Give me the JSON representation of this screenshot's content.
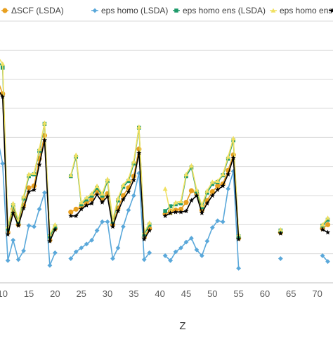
{
  "chart_data": {
    "type": "line",
    "xlabel": "Z",
    "ylabel": "",
    "xlim": [
      9.5,
      73
    ],
    "ylim": [
      0,
      27
    ],
    "x_ticks": [
      10,
      15,
      20,
      25,
      30,
      35,
      40,
      45,
      50,
      55,
      60,
      65,
      70
    ],
    "y_gridlines": [
      3,
      6,
      9,
      12,
      15,
      18,
      21,
      24,
      27
    ],
    "grid": "horizontal",
    "legend_position": "top",
    "series": [
      {
        "name": "ΔSCF (LSDA)",
        "color": "#E8A020",
        "marker": "circle",
        "points": [
          [
            9,
            21
          ],
          [
            10,
            19.5
          ],
          [
            11,
            5.2
          ],
          [
            12,
            7.6
          ],
          [
            13,
            6
          ],
          [
            14,
            8
          ],
          [
            15,
            9.8
          ],
          [
            16,
            10
          ],
          [
            17,
            12.8
          ],
          [
            18,
            15.2
          ],
          [
            19,
            4.4
          ],
          [
            20,
            5.6
          ],
          [
            23,
            7.3
          ],
          [
            24,
            7.6
          ],
          [
            25,
            7.8
          ],
          [
            26,
            8.2
          ],
          [
            27,
            8.6
          ],
          [
            28,
            9.5
          ],
          [
            29,
            8.7
          ],
          [
            30,
            9.2
          ],
          [
            31,
            6
          ],
          [
            32,
            7.7
          ],
          [
            33,
            9
          ],
          [
            34,
            9.8
          ],
          [
            35,
            11
          ],
          [
            36,
            13.8
          ],
          [
            37,
            4.7
          ],
          [
            38,
            5.6
          ],
          [
            41,
            7.1
          ],
          [
            42,
            7.4
          ],
          [
            43,
            7.5
          ],
          [
            44,
            7.6
          ],
          [
            45,
            8.3
          ],
          [
            46,
            9.5
          ],
          [
            47,
            9.2
          ],
          [
            48,
            7.5
          ],
          [
            49,
            8.5
          ],
          [
            50,
            9.4
          ],
          [
            51,
            10
          ],
          [
            52,
            10.2
          ],
          [
            53,
            11.6
          ],
          [
            54,
            13.2
          ],
          [
            55,
            4.6
          ],
          [
            63,
            5.2
          ],
          [
            71,
            5.6
          ],
          [
            72,
            6
          ]
        ]
      },
      {
        "name": "eps homo (LSDA)",
        "color": "#5AA8DA",
        "marker": "diamond",
        "points": [
          [
            9,
            15
          ],
          [
            10,
            12.3
          ],
          [
            11,
            2.3
          ],
          [
            12,
            4.4
          ],
          [
            13,
            2.4
          ],
          [
            14,
            3.3
          ],
          [
            15,
            5.9
          ],
          [
            16,
            5.8
          ],
          [
            17,
            7.6
          ],
          [
            18,
            9.3
          ],
          [
            19,
            1.8
          ],
          [
            20,
            3.1
          ],
          [
            23,
            2.5
          ],
          [
            24,
            3.2
          ],
          [
            25,
            3.6
          ],
          [
            26,
            4
          ],
          [
            27,
            4.4
          ],
          [
            28,
            5.4
          ],
          [
            29,
            6.3
          ],
          [
            30,
            6.3
          ],
          [
            31,
            2.5
          ],
          [
            32,
            3.6
          ],
          [
            33,
            5.8
          ],
          [
            34,
            7.5
          ],
          [
            35,
            9
          ],
          [
            36,
            11.3
          ],
          [
            37,
            2.4
          ],
          [
            38,
            3.1
          ],
          [
            41,
            2.8
          ],
          [
            42,
            2.3
          ],
          [
            43,
            3.2
          ],
          [
            44,
            3.6
          ],
          [
            45,
            4.2
          ],
          [
            46,
            4.6
          ],
          [
            47,
            3.4
          ],
          [
            48,
            2.8
          ],
          [
            49,
            4.3
          ],
          [
            50,
            5.7
          ],
          [
            51,
            6.4
          ],
          [
            52,
            6.3
          ],
          [
            53,
            9.7
          ],
          [
            54,
            11.5
          ],
          [
            55,
            1.5
          ],
          [
            63,
            2.5
          ],
          [
            71,
            2.8
          ],
          [
            72,
            2.2
          ]
        ]
      },
      {
        "name": "eps homo ens (LSDA)",
        "color": "#1E9A6A",
        "marker": "square",
        "points": [
          [
            9,
            23
          ],
          [
            10,
            22.2
          ],
          [
            11,
            5.6
          ],
          [
            12,
            8
          ],
          [
            13,
            6.3
          ],
          [
            14,
            8.7
          ],
          [
            15,
            11
          ],
          [
            16,
            11.2
          ],
          [
            17,
            13.6
          ],
          [
            18,
            16.4
          ],
          [
            19,
            4.8
          ],
          [
            20,
            5.8
          ],
          [
            23,
            11
          ],
          [
            24,
            13
          ],
          [
            25,
            8.1
          ],
          [
            26,
            8.6
          ],
          [
            27,
            9
          ],
          [
            28,
            9.8
          ],
          [
            29,
            9
          ],
          [
            30,
            10.5
          ],
          [
            31,
            6.3
          ],
          [
            32,
            8.5
          ],
          [
            33,
            9.9
          ],
          [
            34,
            10.5
          ],
          [
            35,
            12.3
          ],
          [
            36,
            16
          ],
          [
            37,
            5
          ],
          [
            38,
            6
          ],
          [
            41,
            7.4
          ],
          [
            42,
            7.9
          ],
          [
            43,
            8.1
          ],
          [
            44,
            8.2
          ],
          [
            45,
            11
          ],
          [
            46,
            11.9
          ],
          [
            47,
            9.4
          ],
          [
            48,
            7.8
          ],
          [
            49,
            9.3
          ],
          [
            50,
            10.2
          ],
          [
            51,
            10.4
          ],
          [
            52,
            11.1
          ],
          [
            53,
            12.8
          ],
          [
            54,
            14.7
          ],
          [
            55,
            4.8
          ],
          [
            63,
            5.4
          ],
          [
            71,
            5.9
          ],
          [
            72,
            6.5
          ]
        ]
      },
      {
        "name": "eps homo ens (PBE)",
        "color": "#F0E060",
        "marker": "triangle",
        "points": [
          [
            9,
            23.4
          ],
          [
            10,
            22.6
          ],
          [
            11,
            5.8
          ],
          [
            12,
            8.2
          ],
          [
            13,
            6.5
          ],
          [
            14,
            8.9
          ],
          [
            15,
            11.2
          ],
          [
            16,
            11.3
          ],
          [
            17,
            13.8
          ],
          [
            18,
            16.5
          ],
          [
            19,
            5
          ],
          [
            20,
            6
          ],
          [
            23,
            11.1
          ],
          [
            24,
            13.2
          ],
          [
            25,
            8.3
          ],
          [
            26,
            8.8
          ],
          [
            27,
            9.2
          ],
          [
            28,
            10
          ],
          [
            29,
            9.2
          ],
          [
            30,
            10.7
          ],
          [
            31,
            6.5
          ],
          [
            32,
            8.7
          ],
          [
            33,
            10.1
          ],
          [
            34,
            10.7
          ],
          [
            35,
            12.5
          ],
          [
            36,
            16.1
          ],
          [
            37,
            5.2
          ],
          [
            38,
            6.2
          ],
          [
            41,
            9.7
          ],
          [
            42,
            7.2
          ],
          [
            43,
            8.3
          ],
          [
            44,
            8.4
          ],
          [
            45,
            11.2
          ],
          [
            46,
            12.1
          ],
          [
            47,
            9.6
          ],
          [
            48,
            8
          ],
          [
            49,
            9.5
          ],
          [
            50,
            10.4
          ],
          [
            51,
            10.5
          ],
          [
            52,
            11.2
          ],
          [
            53,
            13
          ],
          [
            54,
            14.9
          ],
          [
            55,
            5
          ],
          [
            63,
            5.5
          ],
          [
            71,
            6
          ],
          [
            72,
            6.7
          ]
        ]
      },
      {
        "name": "",
        "color": "#000000",
        "marker": "star",
        "points": [
          [
            9,
            20
          ],
          [
            10,
            19.2
          ],
          [
            11,
            5
          ],
          [
            12,
            7.2
          ],
          [
            13,
            5.9
          ],
          [
            14,
            7.7
          ],
          [
            15,
            9.4
          ],
          [
            16,
            9.6
          ],
          [
            17,
            12.2
          ],
          [
            18,
            14.7
          ],
          [
            19,
            4.3
          ],
          [
            20,
            5.5
          ],
          [
            23,
            6.9
          ],
          [
            24,
            6.9
          ],
          [
            25,
            7.6
          ],
          [
            26,
            8
          ],
          [
            27,
            8.2
          ],
          [
            28,
            9.1
          ],
          [
            29,
            8.3
          ],
          [
            30,
            8.9
          ],
          [
            31,
            5.8
          ],
          [
            32,
            7.4
          ],
          [
            33,
            8.6
          ],
          [
            34,
            9.4
          ],
          [
            35,
            10.6
          ],
          [
            36,
            13.4
          ],
          [
            37,
            4.5
          ],
          [
            38,
            5.4
          ],
          [
            41,
            6.9
          ],
          [
            42,
            7.2
          ],
          [
            43,
            7.3
          ],
          [
            44,
            7.3
          ],
          [
            45,
            7.4
          ],
          [
            46,
            8.5
          ],
          [
            47,
            9
          ],
          [
            48,
            7.2
          ],
          [
            49,
            8.2
          ],
          [
            50,
            9
          ],
          [
            51,
            9.6
          ],
          [
            52,
            10
          ],
          [
            53,
            11.2
          ],
          [
            54,
            12.9
          ],
          [
            55,
            4.5
          ],
          [
            63,
            5.1
          ],
          [
            71,
            5.5
          ],
          [
            72,
            5.2
          ]
        ]
      }
    ],
    "legend": [
      {
        "label": "ΔSCF (LSDA)",
        "marker": "circle",
        "color": "#E8A020"
      },
      {
        "label": "eps homo (LSDA)",
        "marker": "diamond",
        "color": "#5AA8DA"
      },
      {
        "label": "eps homo ens (LSDA)",
        "marker": "square",
        "color": "#1E9A6A"
      },
      {
        "label": "eps homo ens (PBE)",
        "marker": "triangle",
        "color": "#F0E060"
      },
      {
        "label": "",
        "marker": "star",
        "color": "#000000"
      }
    ]
  }
}
